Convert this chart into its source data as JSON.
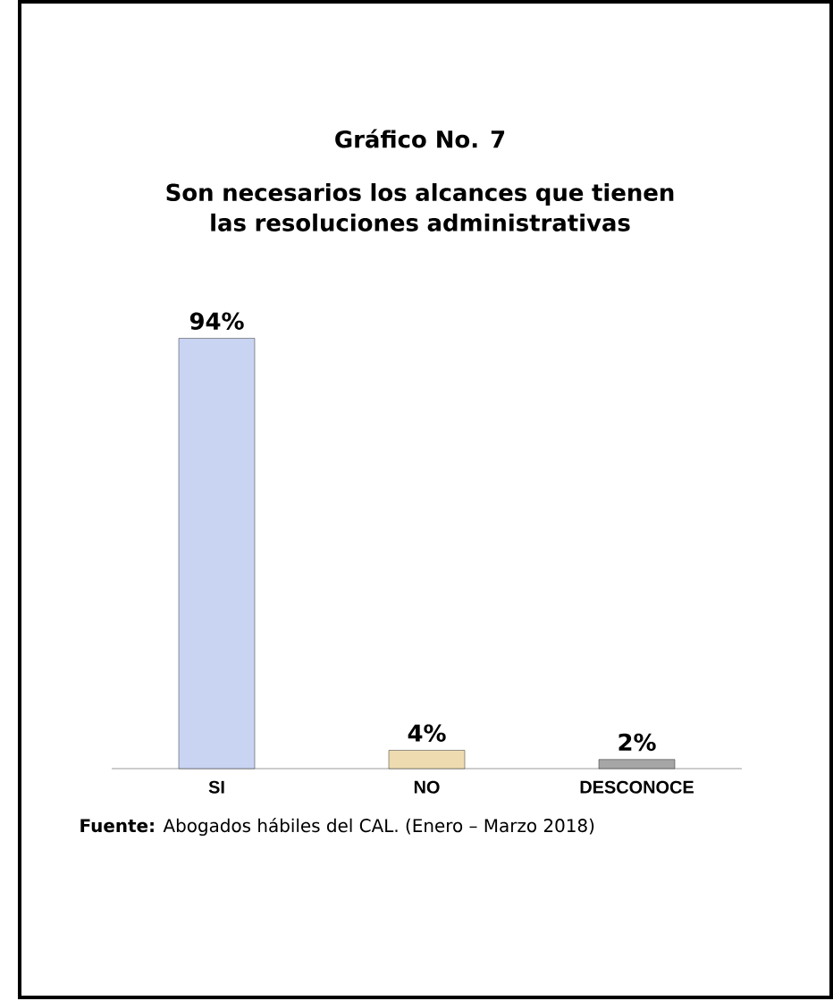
{
  "chart_data": {
    "type": "bar",
    "title": "Gráfico No. 7",
    "subtitle": "Son necesarios los alcances que tienen las resoluciones administrativas",
    "categories": [
      "SI",
      "NO",
      "DESCONOCE"
    ],
    "values": [
      94,
      4,
      2
    ],
    "colors": [
      "#c9d3f2",
      "#eedcb0",
      "#a6a6a6"
    ],
    "value_labels": [
      "94%",
      "4%",
      "2%"
    ],
    "annotations": [
      "**Fuente:** Abogados hábiles del CAL. (Enero – Marzo 2018)"
    ]
  }
}
